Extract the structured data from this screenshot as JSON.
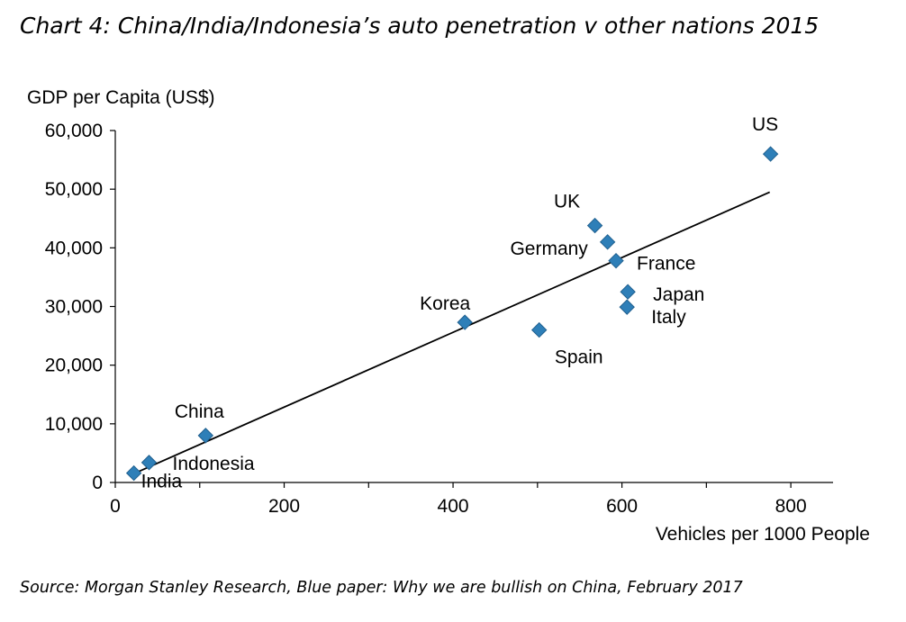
{
  "title": "Chart 4: China/India/Indonesia’s auto penetration v other nations 2015",
  "source": "Source: Morgan Stanley Research, Blue paper: Why we are bullish on China, February 2017",
  "colors": {
    "marker": "#2E7FB8",
    "marker_stroke": "#1F5F8E",
    "axis": "#000000",
    "trend": "#000000"
  },
  "chart_data": {
    "type": "scatter",
    "title": "Chart 4: China/India/Indonesia’s auto penetration v other nations 2015",
    "xlabel": "Vehicles per 1000 People",
    "ylabel": "GDP per Capita (US$)",
    "xlim": [
      0,
      850
    ],
    "ylim": [
      0,
      60000
    ],
    "xticks": [
      0,
      200,
      400,
      600,
      800
    ],
    "xtick_labels": [
      "0",
      "200",
      "400",
      "600",
      "800"
    ],
    "yticks": [
      0,
      10000,
      20000,
      30000,
      40000,
      50000,
      60000
    ],
    "ytick_labels": [
      "0",
      "10,000",
      "20,000",
      "30,000",
      "40,000",
      "50,000",
      "60,000"
    ],
    "grid": false,
    "points": [
      {
        "label": "India",
        "x": 22,
        "y": 1600
      },
      {
        "label": "Indonesia",
        "x": 40,
        "y": 3400
      },
      {
        "label": "China",
        "x": 107,
        "y": 8000
      },
      {
        "label": "Korea",
        "x": 414,
        "y": 27300
      },
      {
        "label": "Spain",
        "x": 502,
        "y": 26000
      },
      {
        "label": "UK",
        "x": 568,
        "y": 43800
      },
      {
        "label": "Germany",
        "x": 583,
        "y": 41000
      },
      {
        "label": "France",
        "x": 593,
        "y": 37800
      },
      {
        "label": "Japan",
        "x": 607,
        "y": 32500
      },
      {
        "label": "Italy",
        "x": 606,
        "y": 29900
      },
      {
        "label": "US",
        "x": 776,
        "y": 56000
      }
    ],
    "trendline": {
      "x": [
        22,
        775
      ],
      "y": [
        1500,
        49500
      ]
    }
  }
}
